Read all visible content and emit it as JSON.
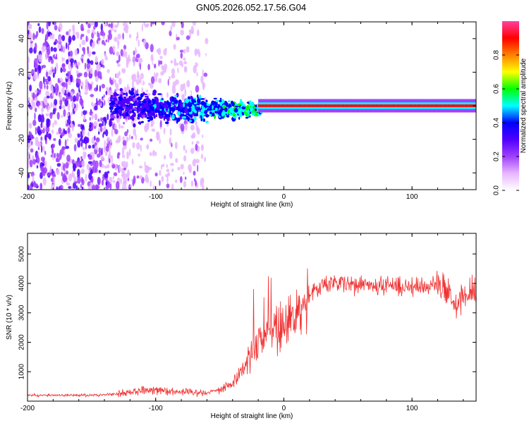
{
  "title": "GN05.2026.052.17.56.G04",
  "chart_data": [
    {
      "type": "heatmap",
      "xlabel": "Height of straight line (km)",
      "ylabel": "Frequency (Hz)",
      "xlim": [
        -200,
        150
      ],
      "ylim": [
        -50,
        50
      ],
      "xticks": [
        -200,
        -100,
        0,
        100
      ],
      "yticks": [
        -40,
        -20,
        0,
        20,
        40
      ],
      "colorbar": {
        "label": "Normalized spectral amplitude",
        "range": [
          0,
          1
        ],
        "ticks": [
          "0.0",
          "0.2",
          "0.4",
          "0.6",
          "0.8"
        ],
        "colors": [
          "#ffffff",
          "#e8b6ff",
          "#a040ff",
          "#5000ff",
          "#0000ff",
          "#00ffff",
          "#00ff00",
          "#ffff00",
          "#ff8000",
          "#ff0000",
          "#ff40a0"
        ]
      },
      "regions": [
        {
          "x_range": [
            -200,
            -60
          ],
          "description": "broad scattered noise across all frequencies"
        },
        {
          "x_range": [
            -135,
            -20
          ],
          "center_frequency": 0,
          "description": "signal emerging near 0 Hz, width narrowing"
        },
        {
          "x_range": [
            -20,
            150
          ],
          "center_frequency": 0,
          "description": "strong narrow line at 0 Hz, amplitude near 1.0"
        }
      ]
    },
    {
      "type": "line",
      "xlabel": "Height of straight line (km)",
      "ylabel": "SNR (10 * v/v)",
      "xlim": [
        -200,
        150
      ],
      "ylim": [
        0,
        5700
      ],
      "xticks": [
        -200,
        -100,
        0,
        100
      ],
      "yticks": [
        1000,
        2000,
        3000,
        4000,
        5000
      ],
      "color": "#f03030",
      "series": [
        {
          "name": "SNR",
          "x": [
            -200,
            -180,
            -160,
            -140,
            -130,
            -120,
            -110,
            -100,
            -90,
            -80,
            -70,
            -60,
            -50,
            -40,
            -35,
            -30,
            -25,
            -20,
            -15,
            -10,
            -5,
            0,
            5,
            10,
            15,
            20,
            25,
            30,
            40,
            50,
            60,
            70,
            80,
            90,
            100,
            110,
            115,
            120,
            125,
            130,
            135,
            140,
            145,
            150
          ],
          "values": [
            200,
            200,
            200,
            220,
            250,
            300,
            380,
            400,
            350,
            320,
            300,
            300,
            400,
            600,
            900,
            1300,
            1700,
            2000,
            2300,
            2400,
            2500,
            2600,
            2800,
            3000,
            3300,
            3600,
            3800,
            3900,
            4000,
            4000,
            3950,
            3900,
            3900,
            3900,
            3900,
            3900,
            3950,
            4100,
            3800,
            3600,
            3200,
            3500,
            3700,
            3600
          ]
        }
      ]
    }
  ]
}
